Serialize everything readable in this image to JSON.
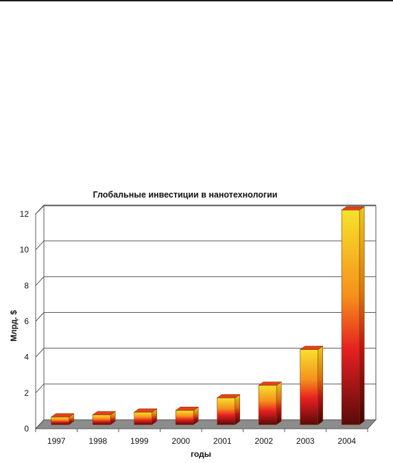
{
  "chart_data": {
    "type": "bar",
    "title": "Глобальные инвестиции в нанотехнологии",
    "xlabel": "годы",
    "ylabel": "Млрд. $",
    "categories": [
      "1997",
      "1998",
      "1999",
      "2000",
      "2001",
      "2002",
      "2003",
      "2004"
    ],
    "values": [
      0.43,
      0.55,
      0.7,
      0.8,
      1.5,
      2.2,
      4.2,
      12.0
    ],
    "ylim": [
      0,
      12
    ],
    "yticks": [
      "0",
      "2",
      "4",
      "6",
      "8",
      "10",
      "12"
    ],
    "grid": true,
    "legend": "none",
    "colors": {
      "bar_top": "#f6e22c",
      "bar_mid_orange": "#f5901c",
      "bar_mid_red": "#e62020",
      "bar_bottom": "#5a0a0a",
      "bar_cap": "#e8401c",
      "floor": "#8c8c8c"
    }
  }
}
